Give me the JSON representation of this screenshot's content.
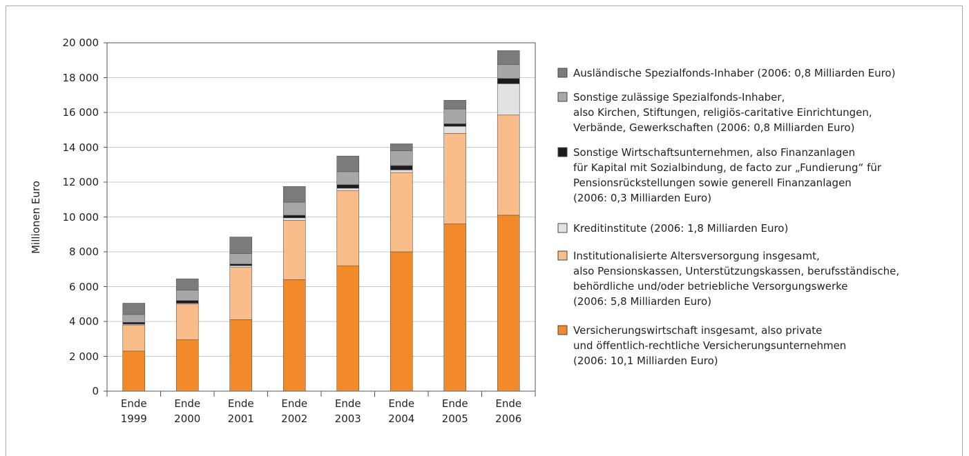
{
  "chart_data": {
    "type": "stacked_bar",
    "y_label": "Millionen Euro",
    "categories": [
      "Ende\n1999",
      "Ende\n2000",
      "Ende\n2001",
      "Ende\n2002",
      "Ende\n2003",
      "Ende\n2004",
      "Ende\n2005",
      "Ende\n2006"
    ],
    "ylim": [
      0,
      20000
    ],
    "yticks": [
      0,
      {
        "value": 2000,
        "label": "2 000"
      },
      {
        "value": 4000,
        "label": "4 000"
      },
      {
        "value": 6000,
        "label": "6 000"
      },
      {
        "value": 8000,
        "label": "8 000"
      },
      {
        "value": 10000,
        "label": "10 000"
      },
      {
        "value": 12000,
        "label": "12 000"
      },
      {
        "value": 14000,
        "label": "14 000"
      },
      {
        "value": 16000,
        "label": "16 000"
      },
      {
        "value": 18000,
        "label": "18 000"
      },
      {
        "value": 20000,
        "label": "20 000"
      }
    ],
    "grid": true,
    "legend": "right",
    "series": [
      {
        "name": "Versicherungswirtschaft insgesamt, also private\nund öffentlich-rechtliche Versicherungsunternehmen\n(2006: 10,1 Milliarden Euro)",
        "color": "#f28a2a",
        "values": [
          2300,
          2950,
          4100,
          6400,
          7200,
          8000,
          9600,
          10100
        ]
      },
      {
        "name": "Institutionalisierte Altersversorgung insgesamt,\nalso Pensionskassen, Unterstützungskassen, berufsständische,\nbehördliche und/oder betriebliche Versorgungswerke\n(2006: 5,8 Milliarden Euro)",
        "color": "#f8bd8a",
        "values": [
          1500,
          2050,
          3000,
          3400,
          4300,
          4550,
          5200,
          5750
        ]
      },
      {
        "name": "Kreditinstitute (2006: 1,8 Milliarden Euro)",
        "color": "#e2e2e3",
        "values": [
          50,
          50,
          100,
          150,
          150,
          150,
          400,
          1800
        ]
      },
      {
        "name": "Sonstige Wirtschaftsunternehmen, also Finanzanlagen\nfür Kapital mit Sozialbindung, de facto zur „Fundierung“ für\nPensionsrückstellungen sowie generell Finanzanlagen\n(2006: 0,3 Milliarden Euro)",
        "color": "#1e1a1b",
        "values": [
          100,
          150,
          100,
          150,
          200,
          250,
          150,
          300
        ]
      },
      {
        "name": "Sonstige zulässige Spezialfonds-Inhaber,\nalso Kirchen, Stiftungen, religiös-caritative Einrichtungen,\nVerbände, Gewerkschaften (2006: 0,8 Milliarden Euro)",
        "color": "#a7a7a9",
        "values": [
          450,
          600,
          600,
          750,
          750,
          850,
          850,
          800
        ]
      },
      {
        "name": "Ausländische Spezialfonds-Inhaber (2006: 0,8 Milliarden Euro)",
        "color": "#7b7b7d",
        "values": [
          650,
          650,
          950,
          900,
          900,
          400,
          500,
          800
        ]
      }
    ]
  }
}
